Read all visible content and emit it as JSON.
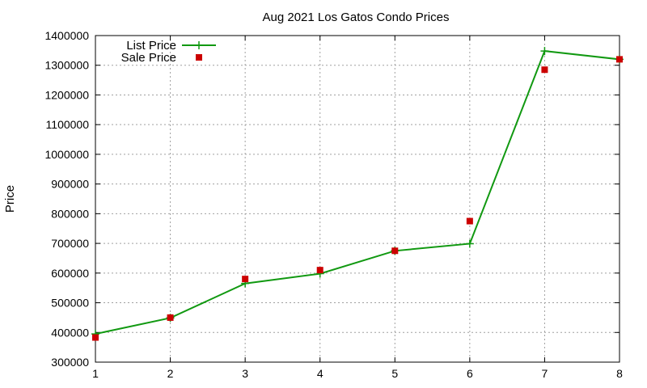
{
  "chart_data": {
    "type": "line",
    "title": "Aug 2021 Los Gatos Condo Prices",
    "xlabel": "",
    "ylabel": "Price",
    "xlim": [
      1,
      8
    ],
    "ylim": [
      300000,
      1400000
    ],
    "x_ticks": [
      1,
      2,
      3,
      4,
      5,
      6,
      7,
      8
    ],
    "y_ticks": [
      300000,
      400000,
      500000,
      600000,
      700000,
      800000,
      900000,
      1000000,
      1100000,
      1200000,
      1300000,
      1400000
    ],
    "grid": true,
    "legend_position": "top-left",
    "series": [
      {
        "name": "List Price",
        "kind": "line-with-plus-markers",
        "color": "#119911",
        "points": [
          {
            "x": 1,
            "y": 395000
          },
          {
            "x": 2,
            "y": 449000
          },
          {
            "x": 3,
            "y": 565000
          },
          {
            "x": 4,
            "y": 598000
          },
          {
            "x": 5,
            "y": 675000
          },
          {
            "x": 6,
            "y": 699000
          },
          {
            "x": 7,
            "y": 1348000
          },
          {
            "x": 8,
            "y": 1320000
          }
        ]
      },
      {
        "name": "Sale Price",
        "kind": "square-markers",
        "color": "#cc0000",
        "points": [
          {
            "x": 1,
            "y": 383000
          },
          {
            "x": 2,
            "y": 450000
          },
          {
            "x": 3,
            "y": 580000
          },
          {
            "x": 4,
            "y": 610000
          },
          {
            "x": 5,
            "y": 675000
          },
          {
            "x": 6,
            "y": 775000
          },
          {
            "x": 7,
            "y": 1285000
          },
          {
            "x": 8,
            "y": 1320000
          }
        ]
      }
    ]
  }
}
